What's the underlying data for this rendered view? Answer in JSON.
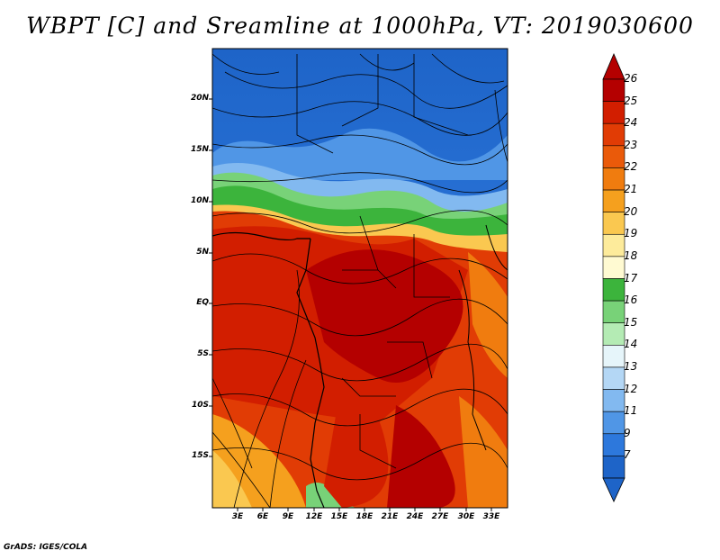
{
  "title": "WBPT [C] and Sreamline at 1000hPa, VT: 2019030600",
  "footer": "GrADS: IGES/COLA",
  "map": {
    "lat_range": [
      -20,
      24
    ],
    "lon_range": [
      0,
      35
    ],
    "lat_ticks": [
      "20N",
      "15N",
      "10N",
      "5N",
      "EQ",
      "5S",
      "10S",
      "15S"
    ],
    "lon_ticks": [
      "3E",
      "6E",
      "9E",
      "12E",
      "15E",
      "18E",
      "21E",
      "24E",
      "27E",
      "30E",
      "33E"
    ]
  },
  "colorbar": {
    "labels": [
      "26",
      "25",
      "24",
      "23",
      "22",
      "21",
      "20",
      "19",
      "18",
      "17",
      "16",
      "15",
      "14",
      "13",
      "12",
      "11",
      "9",
      "7"
    ],
    "colors": [
      "#b40000",
      "#d21e00",
      "#e13c05",
      "#ea5a0a",
      "#f07c0f",
      "#f5a01e",
      "#fac850",
      "#fdeb9b",
      "#fffad2",
      "#3cb43c",
      "#78d278",
      "#b4ebb4",
      "#e6f5fa",
      "#b4d7f5",
      "#82b9f0",
      "#5096e6",
      "#2d78dc",
      "#1e64c8"
    ]
  }
}
